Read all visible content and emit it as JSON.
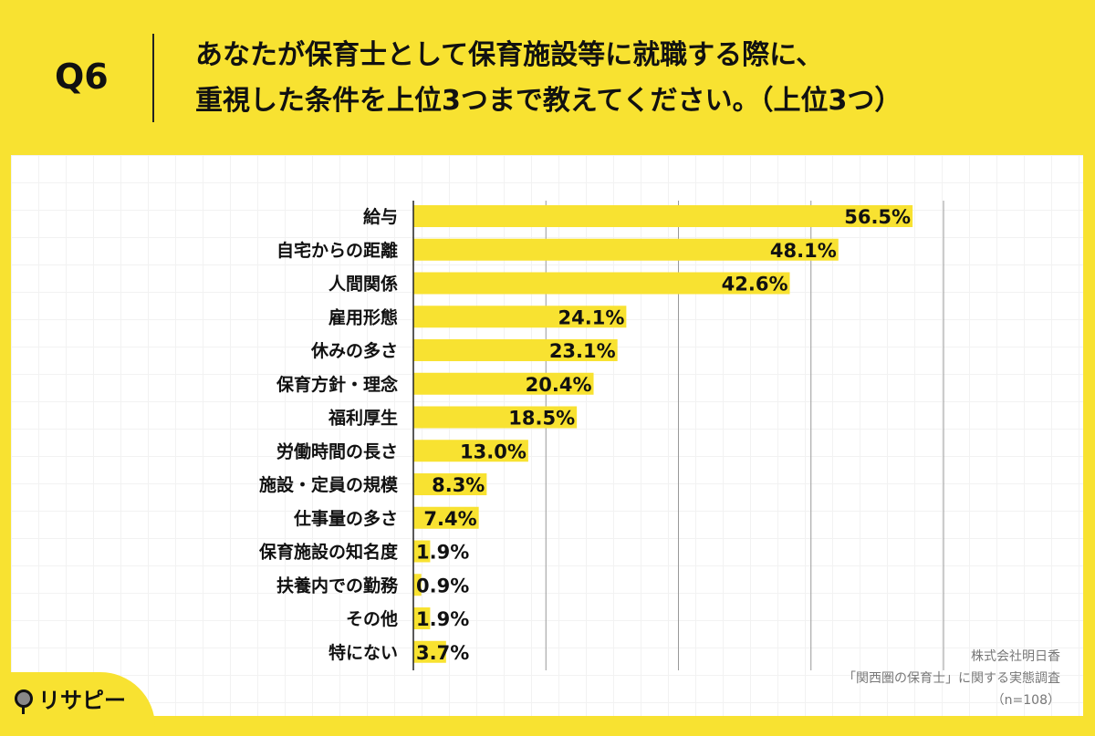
{
  "header": {
    "q": "Q6",
    "title_line1": "あなたが保育士として保育施設等に就職する際に、",
    "title_line2": "重視した条件を上位3つまで教えてください。（上位3つ）"
  },
  "source": {
    "line1": "株式会社明日香",
    "line2": "「関西圏の保育士」に関する実態調査",
    "line3": "（n=108）"
  },
  "logo": {
    "text": "リサピー"
  },
  "colors": {
    "bar": "#F8E231",
    "background": "#F8E231"
  },
  "chart_data": {
    "type": "bar",
    "orientation": "horizontal",
    "categories": [
      "給与",
      "自宅からの距離",
      "人間関係",
      "雇用形態",
      "休みの多さ",
      "保育方針・理念",
      "福利厚生",
      "労働時間の長さ",
      "施設・定員の規模",
      "仕事量の多さ",
      "保育施設の知名度",
      "扶養内での勤務",
      "その他",
      "特にない"
    ],
    "values": [
      56.5,
      48.1,
      42.6,
      24.1,
      23.1,
      20.4,
      18.5,
      13.0,
      8.3,
      7.4,
      1.9,
      0.9,
      1.9,
      3.7
    ],
    "value_labels": [
      "56.5%",
      "48.1%",
      "42.6%",
      "24.1%",
      "23.1%",
      "20.4%",
      "18.5%",
      "13.0%",
      "8.3%",
      "7.4%",
      "1.9%",
      "0.9%",
      "1.9%",
      "3.7%"
    ],
    "xlim": [
      0,
      60
    ],
    "grid_step": 15,
    "grid": true,
    "title": "",
    "xlabel": "",
    "ylabel": ""
  }
}
